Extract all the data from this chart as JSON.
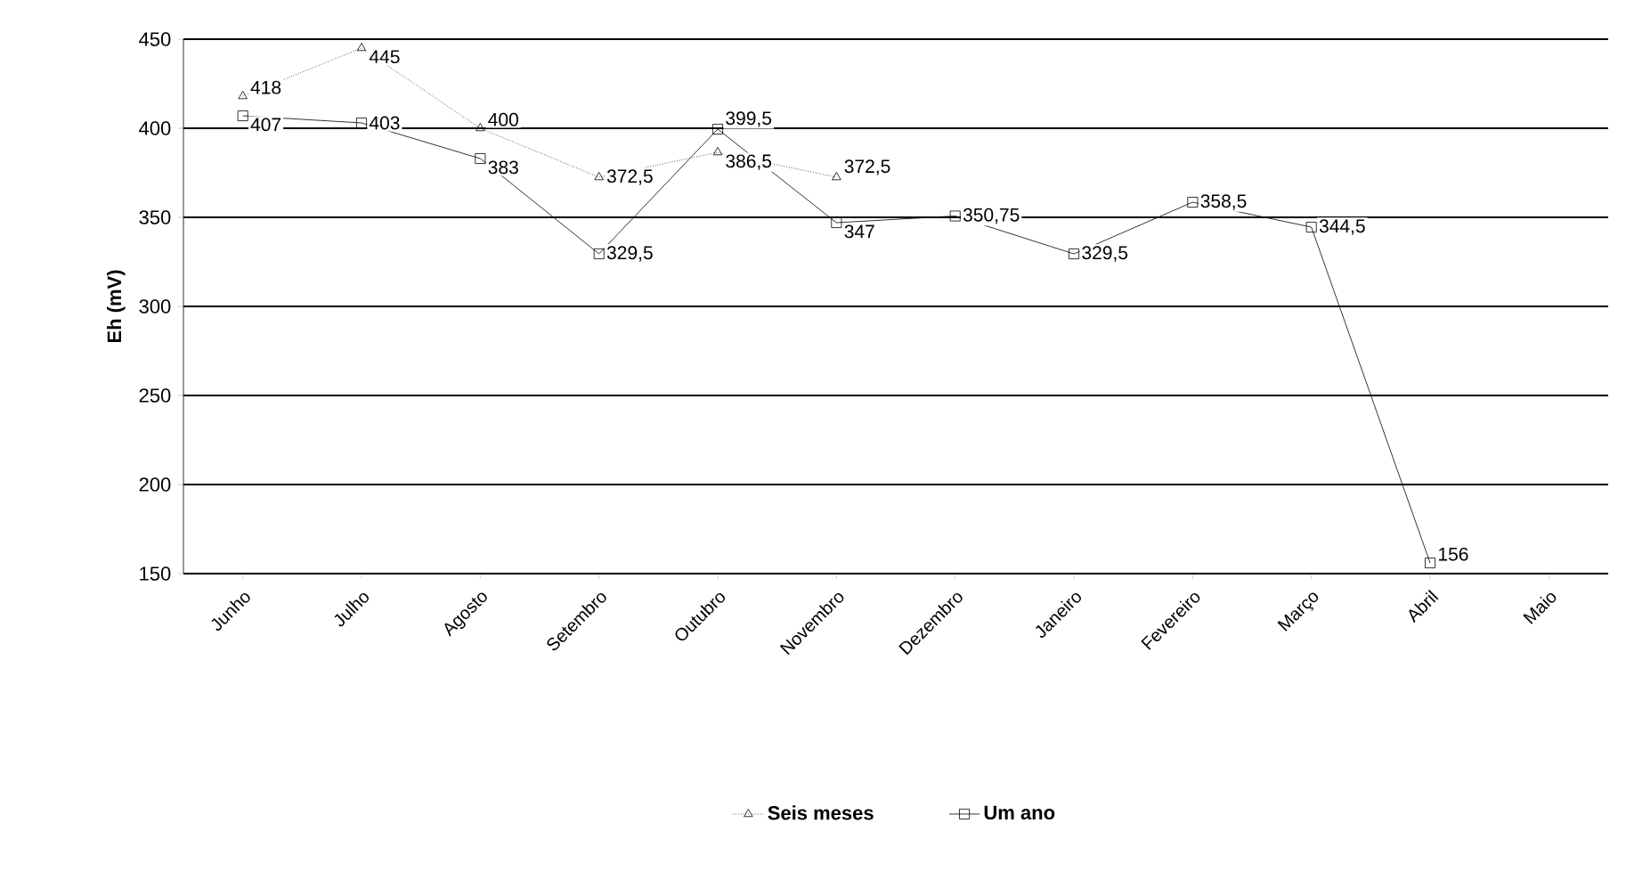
{
  "chart_data": {
    "type": "line",
    "ylabel": "**Eh (mV)**",
    "categories": [
      "Junho",
      "Julho",
      "Agosto",
      "Setembro",
      "Outubro",
      "Novembro",
      "Dezembro",
      "Janeiro",
      "Fevereiro",
      "Março",
      "Abril",
      "Maio"
    ],
    "series": [
      {
        "name": "Seis meses",
        "color": "#000000",
        "marker": "triangle",
        "line_style": "dotted",
        "values": [
          418,
          445,
          400,
          372.5,
          386.5,
          372.5,
          null,
          null,
          null,
          null,
          null,
          null
        ],
        "value_labels": [
          "418",
          "445",
          "400",
          "372,5",
          "386,5",
          "372,5",
          null,
          null,
          null,
          null,
          null,
          null
        ]
      },
      {
        "name": "Um ano",
        "color": "#000000",
        "marker": "square",
        "line_style": "solid",
        "values": [
          407,
          403,
          383,
          329.5,
          399.5,
          347,
          350.75,
          329.5,
          358.5,
          344.5,
          156,
          null
        ],
        "value_labels": [
          "407",
          "403",
          "383",
          "329,5",
          "399,5",
          "347",
          "350,75",
          "329,5",
          "358,5",
          "344,5",
          "156",
          null
        ]
      }
    ],
    "ylim": [
      150,
      450
    ],
    "yticks": [
      150,
      200,
      250,
      300,
      350,
      400,
      450
    ],
    "grid": "y",
    "legend": "bottom"
  }
}
